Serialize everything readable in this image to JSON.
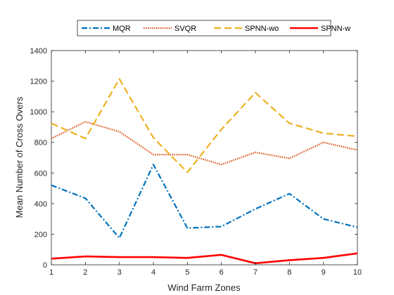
{
  "chart_data": {
    "type": "line",
    "title": "",
    "xlabel": "Wind Farm Zones",
    "ylabel": "Mean Number of Cross Overs",
    "xlim": [
      1,
      10
    ],
    "ylim": [
      0,
      1400
    ],
    "x": [
      1,
      2,
      3,
      4,
      5,
      6,
      7,
      8,
      9,
      10
    ],
    "xticks": [
      "1",
      "2",
      "3",
      "4",
      "5",
      "6",
      "7",
      "8",
      "9",
      "10"
    ],
    "yticks": [
      "0",
      "200",
      "400",
      "600",
      "800",
      "1000",
      "1200",
      "1400"
    ],
    "grid": false,
    "legend_position": "top, horizontal",
    "series": [
      {
        "name": "MQR",
        "color": "#0072BD",
        "style": "dash-dot",
        "values": [
          520,
          435,
          175,
          655,
          240,
          250,
          365,
          465,
          300,
          245
        ]
      },
      {
        "name": "SVQR",
        "color": "#D95319",
        "style": "dotted",
        "values": [
          825,
          935,
          870,
          720,
          720,
          655,
          735,
          695,
          800,
          750
        ]
      },
      {
        "name": "SPNN-wo",
        "color": "#EDB120",
        "style": "dashed",
        "values": [
          925,
          825,
          1215,
          830,
          605,
          885,
          1125,
          925,
          860,
          840
        ]
      },
      {
        "name": "SPNN-w",
        "color": "#FF0000",
        "style": "solid",
        "values": [
          40,
          55,
          50,
          50,
          45,
          65,
          10,
          30,
          45,
          75
        ]
      }
    ]
  }
}
